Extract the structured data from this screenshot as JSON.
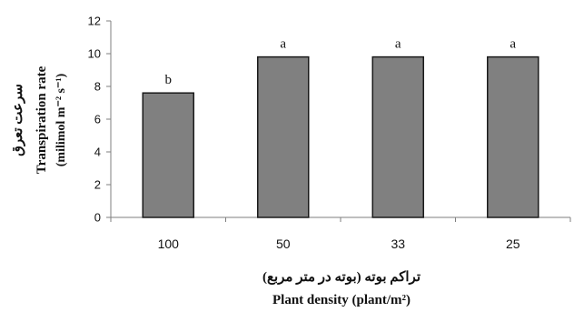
{
  "chart_data": {
    "type": "bar",
    "categories": [
      "100",
      "50",
      "33",
      "25"
    ],
    "values": [
      7.6,
      9.8,
      9.8,
      9.8
    ],
    "data_labels": [
      "b",
      "a",
      "a",
      "a"
    ],
    "ylim": [
      0,
      12
    ],
    "yticks": [
      "0",
      "2",
      "4",
      "6",
      "8",
      "10",
      "12"
    ],
    "xlabel_fa": "تراکم بوته (بوته در متر مربع)",
    "xlabel_en": "Plant density (plant/m²)",
    "ylabel_fa": "سرعت تعرق",
    "ylabel_en_line1": "Transpiration rate",
    "ylabel_en_line2": "(milimol m⁻² s⁻¹)",
    "grid": false,
    "colors": {
      "bar_fill": "#808080",
      "bar_stroke": "#1a1a1a",
      "axis": "#7f7f7f"
    }
  }
}
